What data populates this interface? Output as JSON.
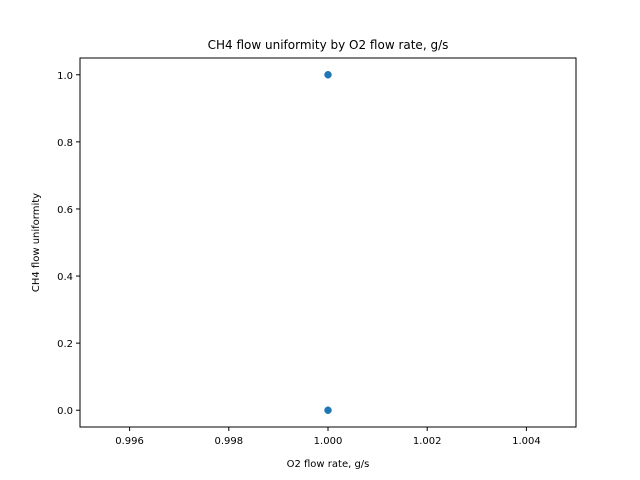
{
  "chart_data": {
    "type": "scatter",
    "title": "CH4 flow uniformity by O2 flow rate, g/s",
    "xlabel": "O2 flow rate, g/s",
    "ylabel": "CH4 flow uniformity",
    "xlim": [
      0.995,
      1.005
    ],
    "ylim": [
      -0.05,
      1.05
    ],
    "xticks": [
      0.996,
      0.998,
      1.0,
      1.002,
      1.004
    ],
    "xtick_labels": [
      "0.996",
      "0.998",
      "1.000",
      "1.002",
      "1.004"
    ],
    "yticks": [
      0.0,
      0.2,
      0.4,
      0.6,
      0.8,
      1.0
    ],
    "ytick_labels": [
      "0.0",
      "0.2",
      "0.4",
      "0.6",
      "0.8",
      "1.0"
    ],
    "grid": false,
    "series": [
      {
        "color": "#1f77b4",
        "points": [
          {
            "x": 1.0,
            "y": 1.0
          },
          {
            "x": 1.0,
            "y": 0.0
          }
        ]
      }
    ]
  }
}
